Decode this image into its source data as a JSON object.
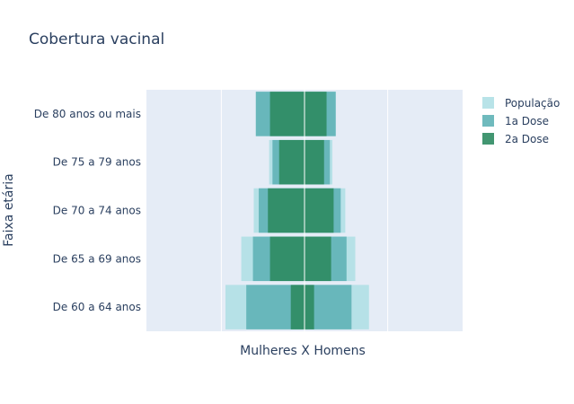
{
  "chart_data": {
    "type": "bar",
    "orientation": "horizontal",
    "barmode": "overlay",
    "title": "Cobertura vacinal",
    "xlabel": "Mulheres X Homens",
    "ylabel": "Faixa etária",
    "categories": [
      "De 60 a 64 anos",
      "De 65 a 69 anos",
      "De 70 a 74 anos",
      "De 75 a 79 anos",
      "De 80 anos ou mais"
    ],
    "xlim": [
      -380,
      380
    ],
    "xticks": [
      -200,
      0,
      200
    ],
    "grid": true,
    "legend_position": "top-right",
    "series": [
      {
        "name": "População",
        "color": "#b0e0e6",
        "left": [
          -190,
          -152,
          -122,
          -85,
          -117
        ],
        "right": [
          155,
          122,
          98,
          67,
          75
        ]
      },
      {
        "name": "1a Dose",
        "color": "#5fb2b6",
        "left": [
          -140,
          -124,
          -110,
          -77,
          -117
        ],
        "right": [
          113,
          101,
          87,
          61,
          75
        ]
      },
      {
        "name": "2a Dose",
        "color": "#2e8b62",
        "left": [
          -33,
          -83,
          -88,
          -61,
          -83
        ],
        "right": [
          23,
          64,
          70,
          47,
          53
        ]
      }
    ]
  }
}
